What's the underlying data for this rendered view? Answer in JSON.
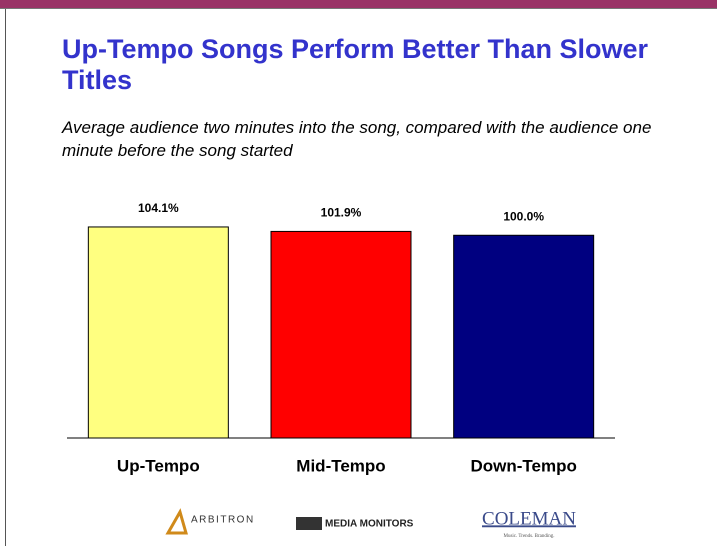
{
  "chart_data": {
    "type": "bar",
    "title": "Up-Tempo Songs Perform Better Than Slower Titles",
    "subtitle": "Average audience two minutes into the song, compared with the audience one minute before the song started",
    "categories": [
      "Up-Tempo",
      "Mid-Tempo",
      "Down-Tempo"
    ],
    "values": [
      104.1,
      101.9,
      100.0
    ],
    "value_labels": [
      "104.1%",
      "101.9%",
      "100.0%"
    ],
    "colors": [
      "#ffff80",
      "#ff0000",
      "#000080"
    ],
    "ylim": [
      0,
      110
    ]
  },
  "logos": [
    "ARBITRON",
    "MEDIA MONITORS",
    "COLEMAN",
    "Music. Trends. Branding."
  ]
}
